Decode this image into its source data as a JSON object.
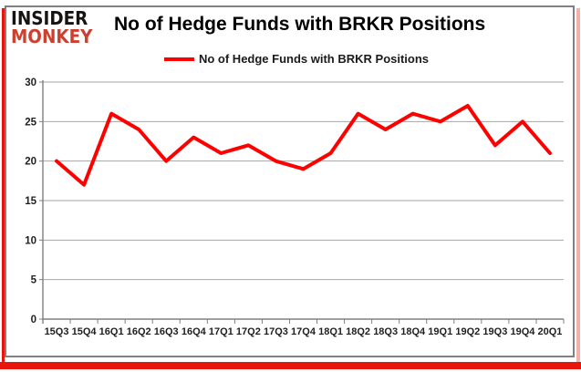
{
  "branding": {
    "logo_line1": "INSIDER",
    "logo_line2": "MONKEY",
    "logo_color1": "#161413",
    "logo_color2": "#cd3f2e"
  },
  "header": {
    "title": "No of Hedge Funds with BRKR Positions"
  },
  "legend": {
    "label": "No of Hedge Funds with BRKR Positions",
    "swatch_color": "#ff0000"
  },
  "chart_data": {
    "type": "line",
    "title": "No of Hedge Funds with BRKR Positions",
    "categories": [
      "15Q3",
      "15Q4",
      "16Q1",
      "16Q2",
      "16Q3",
      "16Q4",
      "17Q1",
      "17Q2",
      "17Q3",
      "17Q4",
      "18Q1",
      "18Q2",
      "18Q3",
      "18Q4",
      "19Q1",
      "19Q2",
      "19Q3",
      "19Q4",
      "20Q1"
    ],
    "series": [
      {
        "name": "No of Hedge Funds with BRKR Positions",
        "color": "#ff0000",
        "values": [
          20,
          17,
          26,
          24,
          20,
          23,
          21,
          22,
          20,
          19,
          21,
          26,
          24,
          26,
          25,
          27,
          22,
          25,
          21
        ]
      }
    ],
    "xlabel": "",
    "ylabel": "",
    "ylim": [
      0,
      30
    ],
    "yticks": [
      0,
      5,
      10,
      15,
      20,
      25,
      30
    ],
    "grid": "horizontal",
    "legend_position": "top-center"
  },
  "colors": {
    "line": "#ff0000",
    "gridline": "#a6a6a6",
    "axis": "#808080",
    "tick_label": "#1f1f1f",
    "card_border": "#808080",
    "edge_red": "#e8150b",
    "edge_pink": "#f5b0aa"
  }
}
